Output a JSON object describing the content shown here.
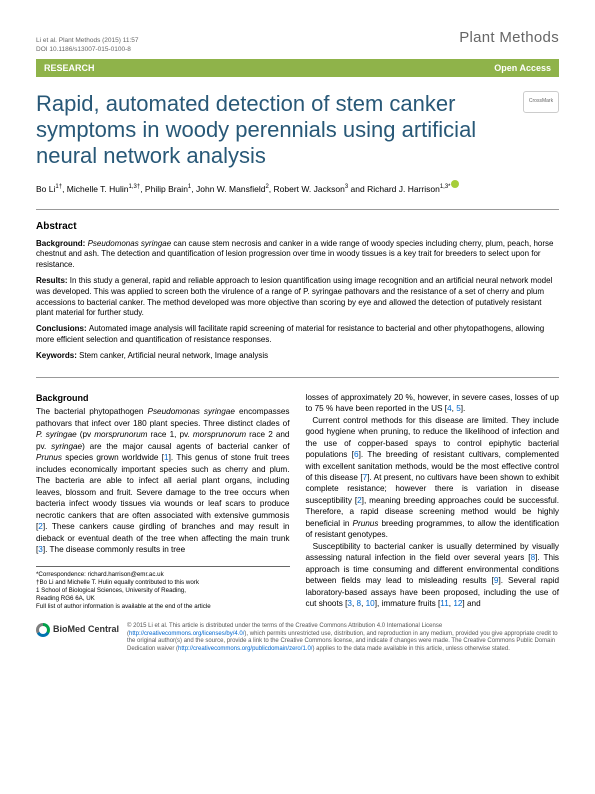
{
  "header": {
    "doi": "Li et al. Plant Methods  (2015) 11:57\nDOI 10.1186/s13007-015-0100-8",
    "journal": "Plant Methods"
  },
  "banner": {
    "left": "RESEARCH",
    "right": "Open Access"
  },
  "crossmark": "CrossMark",
  "title": "Rapid, automated detection of stem canker symptoms in woody perennials using artificial neural network analysis",
  "authors_html": "Bo Li<sup>1†</sup>, Michelle T. Hulin<sup>1,3†</sup>, Philip Brain<sup>1</sup>, John W. Mansfield<sup>2</sup>, Robert W. Jackson<sup>3</sup> and Richard J. Harrison<sup>1,3*</sup>",
  "abstract": {
    "heading": "Abstract",
    "background": "Pseudomonas syringae can cause stem necrosis and canker in a wide range of woody species including cherry, plum, peach, horse chestnut and ash. The detection and quantification of lesion progression over time in woody tissues is a key trait for breeders to select upon for resistance.",
    "results": "In this study a general, rapid and reliable approach to lesion quantification using image recognition and an artificial neural network model was developed. This was applied to screen both the virulence of a range of P. syringae pathovars and the resistance of a set of cherry and plum accessions to bacterial canker. The method developed was more objective than scoring by eye and allowed the detection of putatively resistant plant material for further study.",
    "conclusions": "Automated image analysis will facilitate rapid screening of material for resistance to bacterial and other phytopathogens, allowing more efficient selection and quantification of resistance responses.",
    "keywords": "Stem canker, Artificial neural network, Image analysis"
  },
  "body": {
    "heading": "Background",
    "col1": "The bacterial phytopathogen <span class=\"it\">Pseudomonas syringae</span> encompasses pathovars that infect over 180 plant species. Three distinct clades of <span class=\"it\">P. syringae</span> (pv <span class=\"it\">morsprunorum</span> race 1, pv. <span class=\"it\">morsprunorum</span> race 2 and pv. <span class=\"it\">syringae</span>) are the major causal agents of bacterial canker of <span class=\"it\">Prunus</span> species grown worldwide [<span class=\"ref\">1</span>]. This genus of stone fruit trees includes economically important species such as cherry and plum. The bacteria are able to infect all aerial plant organs, including leaves, blossom and fruit. Severe damage to the tree occurs when bacteria infect woody tissues via wounds or leaf scars to produce necrotic cankers that are often associated with extensive gummosis [<span class=\"ref\">2</span>]. These cankers cause girdling of branches and may result in dieback or eventual death of the tree when affecting the main trunk [<span class=\"ref\">3</span>]. The disease commonly results in tree",
    "col2": "losses of approximately 20 %, however, in severe cases, losses of up to 75 % have been reported in the US [<span class=\"ref\">4</span>, <span class=\"ref\">5</span>].<br>&nbsp;&nbsp;Current control methods for this disease are limited. They include good hygiene when pruning, to reduce the likelihood of infection and the use of copper-based spays to control epiphytic bacterial populations [<span class=\"ref\">6</span>]. The breeding of resistant cultivars, complemented with excellent sanitation methods, would be the most effective control of this disease [<span class=\"ref\">7</span>]. At present, no cultivars have been shown to exhibit complete resistance; however there is variation in disease susceptibility [<span class=\"ref\">2</span>], meaning breeding approaches could be successful. Therefore, a rapid disease screening method would be highly beneficial in <span class=\"it\">Prunus</span> breeding programmes, to allow the identification of resistant genotypes.<br>&nbsp;&nbsp;Susceptibility to bacterial canker is usually determined by visually assessing natural infection in the field over several years [<span class=\"ref\">8</span>]. This approach is time consuming and different environmental conditions between fields may lead to misleading results [<span class=\"ref\">9</span>]. Several rapid laboratory-based assays have been proposed, including the use of cut shoots [<span class=\"ref\">3</span>, <span class=\"ref\">8</span>, <span class=\"ref\">10</span>], immature fruits [<span class=\"ref\">11</span>, <span class=\"ref\">12</span>] and"
  },
  "footnote": "*Correspondence: richard.harrison@emr.ac.uk\n†Bo Li and Michelle T. Hulin equally contributed to this work\n1 School of Biological Sciences, University of Reading,\nReading RG6 6A, UK\nFull list of author information is available at the end of the article",
  "footer": {
    "bmc": "BioMed Central",
    "cc": "© 2015 Li et al. This article is distributed under the terms of the Creative Commons Attribution 4.0 International License (<span class=\"ref\">http://creativecommons.org/licenses/by/4.0/</span>), which permits unrestricted use, distribution, and reproduction in any medium, provided you give appropriate credit to the original author(s) and the source, provide a link to the Creative Commons license, and indicate if changes were made. The Creative Commons Public Domain Dedication waiver (<span class=\"ref\">http://creativecommons.org/publicdomain/zero/1.0/</span>) applies to the data made available in this article, unless otherwise stated."
  }
}
